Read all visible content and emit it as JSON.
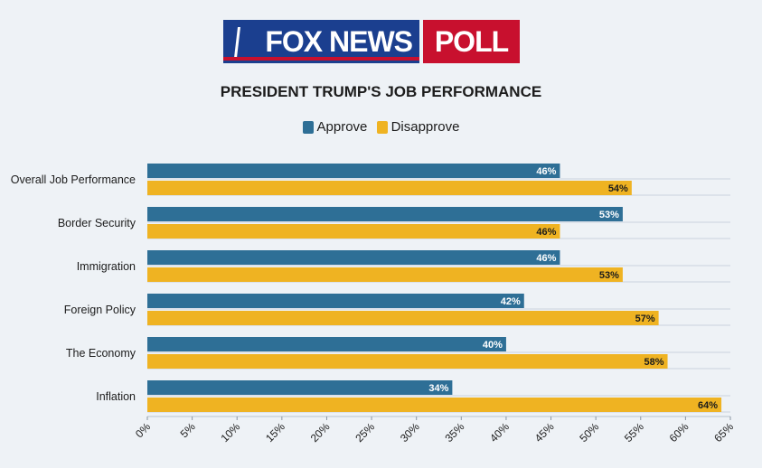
{
  "logo": {
    "brand": "FOX NEWS",
    "suffix": "POLL"
  },
  "colors": {
    "approve": "#2e6f96",
    "disapprove": "#efb322",
    "grid": "#d6dde5",
    "brand_blue": "#1b3f8f",
    "brand_red": "#c8102e"
  },
  "chart_data": {
    "type": "bar",
    "orientation": "horizontal",
    "title": "PRESIDENT TRUMP'S JOB PERFORMANCE",
    "categories": [
      "Overall Job Performance",
      "Border Security",
      "Immigration",
      "Foreign Policy",
      "The Economy",
      "Inflation"
    ],
    "series": [
      {
        "name": "Approve",
        "values": [
          46,
          53,
          46,
          42,
          40,
          34
        ]
      },
      {
        "name": "Disapprove",
        "values": [
          54,
          46,
          53,
          57,
          58,
          64
        ]
      }
    ],
    "xlim": [
      0,
      65
    ],
    "xticks": [
      "0%",
      "5%",
      "10%",
      "15%",
      "20%",
      "25%",
      "30%",
      "35%",
      "40%",
      "45%",
      "50%",
      "55%",
      "60%",
      "65%"
    ],
    "value_suffix": "%",
    "legend_position": "top-center",
    "grid": "horizontal"
  }
}
